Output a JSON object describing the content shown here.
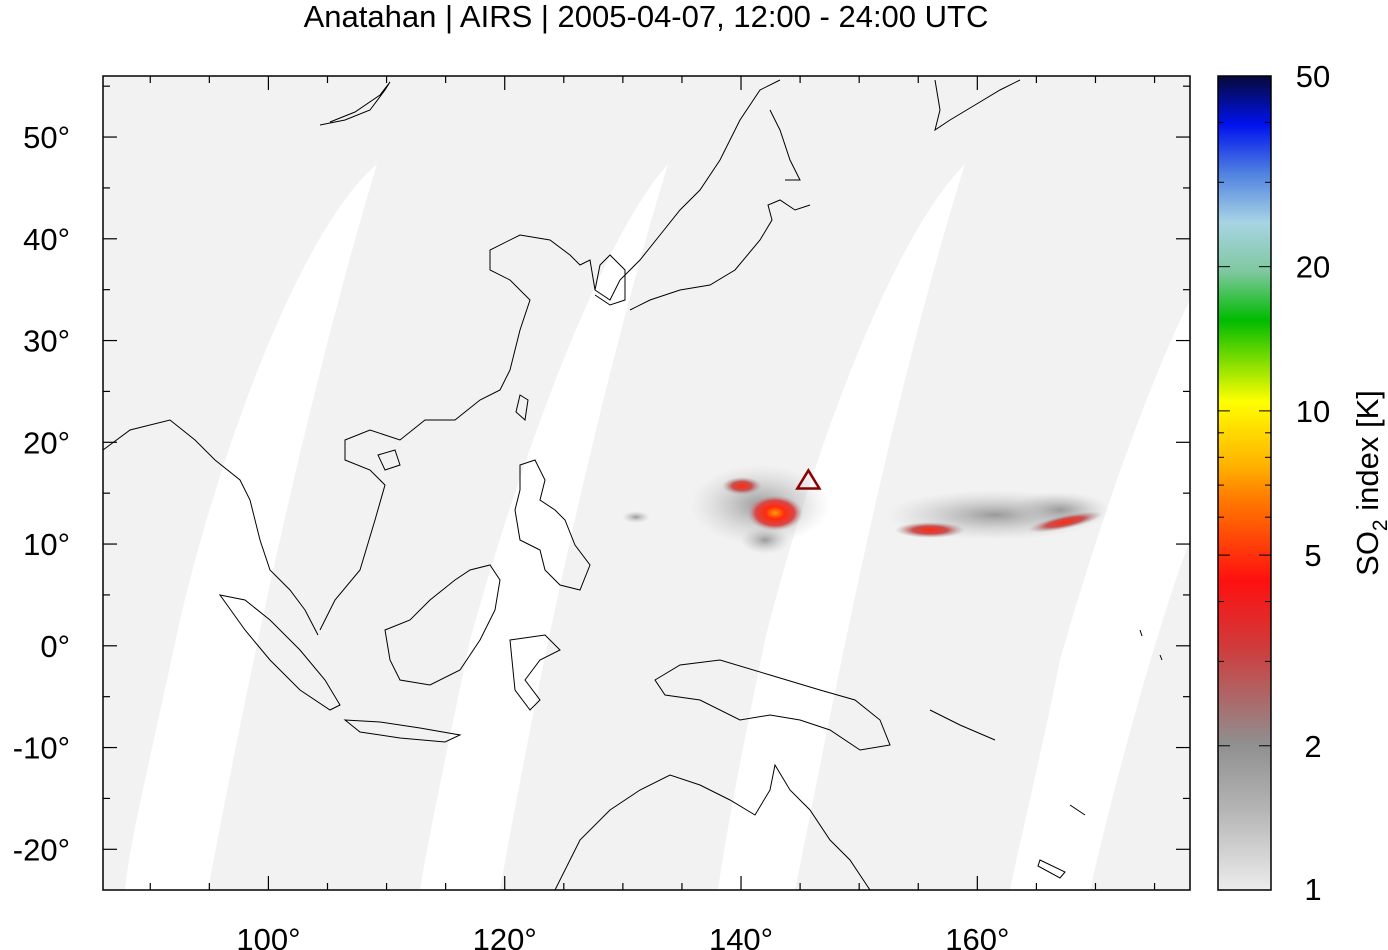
{
  "title": "Anatahan | AIRS | 2005-04-07, 12:00 - 24:00 UTC",
  "chart_data": {
    "type": "heatmap",
    "title": "Anatahan | AIRS | 2005-04-07, 12:00 - 24:00 UTC",
    "x_ticks": [
      "100°",
      "120°",
      "140°",
      "160°"
    ],
    "y_ticks": [
      "50°",
      "40°",
      "30°",
      "20°",
      "10°",
      "0°",
      "-10°",
      "-20°"
    ],
    "x_tick_values": [
      100,
      120,
      140,
      160
    ],
    "y_tick_values": [
      50,
      40,
      30,
      20,
      10,
      0,
      -10,
      -20
    ],
    "xlim": [
      86,
      178
    ],
    "ylim": [
      -24,
      56
    ],
    "grid": false,
    "volcano": {
      "name_marker": "triangle",
      "lon": 145.7,
      "lat": 16.35
    },
    "colorbar": {
      "label": "SO2 index [K]",
      "label_main": "SO",
      "label_sub": "2",
      "label_rest": " index [K]",
      "scale": "log",
      "range": [
        1,
        50
      ],
      "tick_labels": [
        "50",
        "20",
        "10",
        "5",
        "2",
        "1"
      ],
      "tick_values": [
        50,
        20,
        10,
        5,
        2,
        1
      ],
      "colors": [
        "#e6e6e6",
        "#8c8c8c",
        "#c84040",
        "#ff0000",
        "#ff7a00",
        "#ffff00",
        "#00bb00",
        "#9fd0e0",
        "#4b8bde",
        "#0000ff",
        "#060b3c"
      ]
    },
    "plume_clusters": [
      {
        "lon": 142.0,
        "lat": 14.0,
        "value": 5.0
      },
      {
        "lon": 139.5,
        "lat": 15.8,
        "value": 4.0
      },
      {
        "lon": 153.5,
        "lat": 11.8,
        "value": 3.0
      },
      {
        "lon": 166.0,
        "lat": 12.7,
        "value": 3.0
      },
      {
        "lon": 131.0,
        "lat": 13.0,
        "value": 1.5
      }
    ]
  }
}
